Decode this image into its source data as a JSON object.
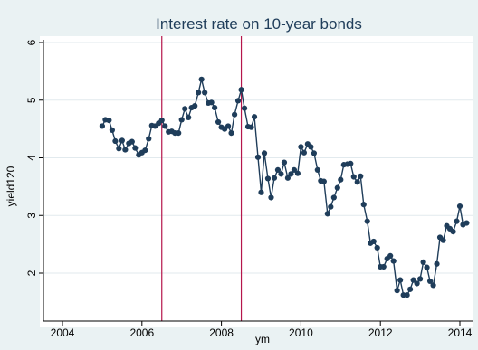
{
  "chart_data": {
    "type": "line",
    "title": "Interest rate on 10-year bonds",
    "xlabel": "ym",
    "ylabel": "yield120",
    "xlim": [
      2004.0,
      2014.25
    ],
    "ylim": [
      1.55,
      6.2
    ],
    "x_ticks": [
      {
        "value": 2004,
        "label": "2004"
      },
      {
        "value": 2006,
        "label": "2006"
      },
      {
        "value": 2008,
        "label": "2008"
      },
      {
        "value": 2010,
        "label": "2010"
      },
      {
        "value": 2012,
        "label": "2012"
      },
      {
        "value": 2014,
        "label": "2014"
      }
    ],
    "y_ticks": [
      {
        "value": 2,
        "label": "2"
      },
      {
        "value": 3,
        "label": "3"
      },
      {
        "value": 4,
        "label": "4"
      },
      {
        "value": 5,
        "label": "5"
      },
      {
        "value": 6,
        "label": "6"
      }
    ],
    "grid": true,
    "vlines": [
      2006.5,
      2008.5
    ],
    "colors": {
      "series": "#1f3d5a",
      "vline": "#b5164b",
      "background": "#eaf2f3",
      "plot_background": "#ffffff",
      "grid": "#e2eaee"
    },
    "series": [
      {
        "values": [
          [
            2005.0,
            4.55
          ],
          [
            2005.08,
            4.66
          ],
          [
            2005.17,
            4.65
          ],
          [
            2005.25,
            4.48
          ],
          [
            2005.33,
            4.29
          ],
          [
            2005.42,
            4.16
          ],
          [
            2005.5,
            4.3
          ],
          [
            2005.58,
            4.14
          ],
          [
            2005.67,
            4.25
          ],
          [
            2005.75,
            4.28
          ],
          [
            2005.83,
            4.17
          ],
          [
            2005.92,
            4.05
          ],
          [
            2006.0,
            4.09
          ],
          [
            2006.08,
            4.13
          ],
          [
            2006.17,
            4.33
          ],
          [
            2006.25,
            4.56
          ],
          [
            2006.33,
            4.55
          ],
          [
            2006.42,
            4.6
          ],
          [
            2006.5,
            4.65
          ],
          [
            2006.58,
            4.55
          ],
          [
            2006.67,
            4.45
          ],
          [
            2006.75,
            4.46
          ],
          [
            2006.83,
            4.43
          ],
          [
            2006.92,
            4.43
          ],
          [
            2007.0,
            4.66
          ],
          [
            2007.08,
            4.85
          ],
          [
            2007.17,
            4.7
          ],
          [
            2007.25,
            4.87
          ],
          [
            2007.33,
            4.9
          ],
          [
            2007.42,
            5.13
          ],
          [
            2007.5,
            5.36
          ],
          [
            2007.58,
            5.13
          ],
          [
            2007.67,
            4.95
          ],
          [
            2007.75,
            4.96
          ],
          [
            2007.83,
            4.87
          ],
          [
            2007.92,
            4.62
          ],
          [
            2008.0,
            4.53
          ],
          [
            2008.08,
            4.5
          ],
          [
            2008.17,
            4.55
          ],
          [
            2008.25,
            4.43
          ],
          [
            2008.33,
            4.75
          ],
          [
            2008.42,
            4.99
          ],
          [
            2008.5,
            5.18
          ],
          [
            2008.58,
            4.86
          ],
          [
            2008.67,
            4.54
          ],
          [
            2008.75,
            4.53
          ],
          [
            2008.83,
            4.71
          ],
          [
            2008.92,
            4.01
          ],
          [
            2009.0,
            3.4
          ],
          [
            2009.08,
            4.08
          ],
          [
            2009.17,
            3.64
          ],
          [
            2009.25,
            3.31
          ],
          [
            2009.33,
            3.65
          ],
          [
            2009.42,
            3.79
          ],
          [
            2009.5,
            3.72
          ],
          [
            2009.58,
            3.92
          ],
          [
            2009.67,
            3.65
          ],
          [
            2009.75,
            3.72
          ],
          [
            2009.83,
            3.79
          ],
          [
            2009.92,
            3.73
          ],
          [
            2010.0,
            4.19
          ],
          [
            2010.08,
            4.09
          ],
          [
            2010.17,
            4.24
          ],
          [
            2010.25,
            4.19
          ],
          [
            2010.33,
            4.08
          ],
          [
            2010.42,
            3.79
          ],
          [
            2010.5,
            3.6
          ],
          [
            2010.58,
            3.59
          ],
          [
            2010.67,
            3.03
          ],
          [
            2010.75,
            3.15
          ],
          [
            2010.83,
            3.31
          ],
          [
            2010.92,
            3.48
          ],
          [
            2011.0,
            3.62
          ],
          [
            2011.08,
            3.88
          ],
          [
            2011.17,
            3.89
          ],
          [
            2011.25,
            3.9
          ],
          [
            2011.33,
            3.67
          ],
          [
            2011.42,
            3.58
          ],
          [
            2011.5,
            3.68
          ],
          [
            2011.58,
            3.19
          ],
          [
            2011.67,
            2.9
          ],
          [
            2011.75,
            2.52
          ],
          [
            2011.83,
            2.55
          ],
          [
            2011.92,
            2.44
          ],
          [
            2012.0,
            2.11
          ],
          [
            2012.08,
            2.11
          ],
          [
            2012.17,
            2.25
          ],
          [
            2012.25,
            2.3
          ],
          [
            2012.33,
            2.21
          ],
          [
            2012.42,
            1.7
          ],
          [
            2012.5,
            1.88
          ],
          [
            2012.58,
            1.62
          ],
          [
            2012.67,
            1.62
          ],
          [
            2012.75,
            1.72
          ],
          [
            2012.83,
            1.88
          ],
          [
            2012.92,
            1.82
          ],
          [
            2013.0,
            1.9
          ],
          [
            2013.08,
            2.19
          ],
          [
            2013.17,
            2.1
          ],
          [
            2013.25,
            1.86
          ],
          [
            2013.33,
            1.79
          ],
          [
            2013.42,
            2.16
          ],
          [
            2013.5,
            2.62
          ],
          [
            2013.58,
            2.57
          ],
          [
            2013.67,
            2.82
          ],
          [
            2013.75,
            2.77
          ],
          [
            2013.83,
            2.72
          ],
          [
            2013.92,
            2.9
          ],
          [
            2014.0,
            3.16
          ],
          [
            2014.08,
            2.84
          ],
          [
            2014.17,
            2.87
          ]
        ]
      }
    ]
  }
}
